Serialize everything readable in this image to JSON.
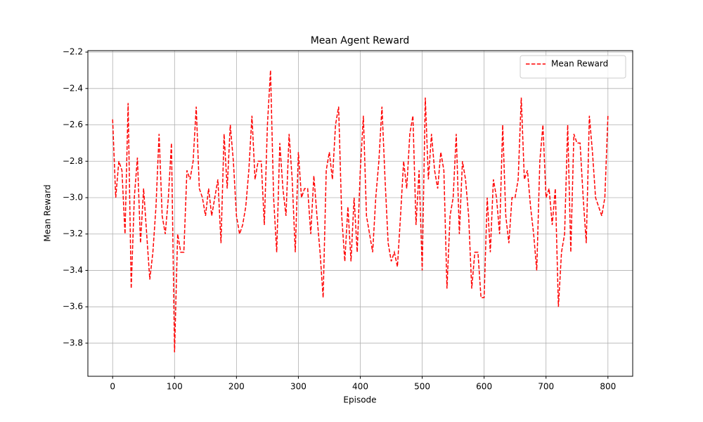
{
  "chart_data": {
    "type": "line",
    "title": "Mean Agent Reward",
    "xlabel": "Episode",
    "ylabel": "Mean Reward",
    "xlim": [
      -40,
      840
    ],
    "ylim": [
      -3.982,
      -2.192
    ],
    "xticks": [
      0,
      100,
      200,
      300,
      400,
      500,
      600,
      700,
      800
    ],
    "yticks": [
      {
        "value": -3.8,
        "label": "−3.8"
      },
      {
        "value": -3.6,
        "label": "−3.6"
      },
      {
        "value": -3.4,
        "label": "−3.4"
      },
      {
        "value": -3.2,
        "label": "−3.2"
      },
      {
        "value": -3.0,
        "label": "−3.0"
      },
      {
        "value": -2.8,
        "label": "−2.8"
      },
      {
        "value": -2.6,
        "label": "−2.6"
      },
      {
        "value": -2.4,
        "label": "−2.4"
      },
      {
        "value": -2.2,
        "label": "−2.2"
      }
    ],
    "grid": true,
    "legend": "upper-right",
    "x": [
      0,
      5,
      10,
      15,
      20,
      25,
      30,
      35,
      40,
      45,
      50,
      55,
      60,
      65,
      70,
      75,
      80,
      85,
      90,
      95,
      100,
      105,
      110,
      115,
      120,
      125,
      130,
      135,
      140,
      145,
      150,
      155,
      160,
      165,
      170,
      175,
      180,
      185,
      190,
      195,
      200,
      205,
      210,
      215,
      220,
      225,
      230,
      235,
      240,
      245,
      250,
      255,
      260,
      265,
      270,
      275,
      280,
      285,
      290,
      295,
      300,
      305,
      310,
      315,
      320,
      325,
      330,
      335,
      340,
      345,
      350,
      355,
      360,
      365,
      370,
      375,
      380,
      385,
      390,
      395,
      400,
      405,
      410,
      415,
      420,
      425,
      430,
      435,
      440,
      445,
      450,
      455,
      460,
      465,
      470,
      475,
      480,
      485,
      490,
      495,
      500,
      505,
      510,
      515,
      520,
      525,
      530,
      535,
      540,
      545,
      550,
      555,
      560,
      565,
      570,
      575,
      580,
      585,
      590,
      595,
      600,
      605,
      610,
      615,
      620,
      625,
      630,
      635,
      640,
      645,
      650,
      655,
      660,
      665,
      670,
      675,
      680,
      685,
      690,
      695,
      700,
      705,
      710,
      715,
      720,
      725,
      730,
      735,
      740,
      745,
      750,
      755,
      760,
      765,
      770,
      775,
      780,
      785,
      790,
      795,
      800
    ],
    "series": [
      {
        "name": "Mean Reward",
        "color": "#ff0000",
        "values": [
          -2.57,
          -3.0,
          -2.8,
          -2.85,
          -3.2,
          -2.48,
          -3.5,
          -3.0,
          -2.78,
          -3.25,
          -2.95,
          -3.2,
          -3.45,
          -3.3,
          -3.05,
          -2.65,
          -3.1,
          -3.2,
          -3.0,
          -2.7,
          -3.85,
          -3.2,
          -3.3,
          -3.3,
          -2.85,
          -2.9,
          -2.8,
          -2.5,
          -2.95,
          -3.0,
          -3.1,
          -2.95,
          -3.1,
          -3.0,
          -2.9,
          -3.25,
          -2.65,
          -2.95,
          -2.6,
          -2.8,
          -3.1,
          -3.2,
          -3.15,
          -3.05,
          -2.85,
          -2.55,
          -2.9,
          -2.8,
          -2.8,
          -3.15,
          -2.6,
          -2.3,
          -3.0,
          -3.3,
          -2.7,
          -2.95,
          -3.1,
          -2.65,
          -2.9,
          -3.3,
          -2.75,
          -3.0,
          -2.95,
          -2.95,
          -3.2,
          -2.88,
          -3.1,
          -3.3,
          -3.55,
          -2.85,
          -2.75,
          -2.9,
          -2.6,
          -2.5,
          -3.1,
          -3.35,
          -3.05,
          -3.35,
          -3.0,
          -3.3,
          -2.85,
          -2.55,
          -3.1,
          -3.2,
          -3.3,
          -3.0,
          -2.8,
          -2.5,
          -2.9,
          -3.25,
          -3.35,
          -3.3,
          -3.38,
          -3.1,
          -2.8,
          -2.95,
          -2.65,
          -2.55,
          -3.15,
          -2.85,
          -3.4,
          -2.45,
          -2.9,
          -2.65,
          -2.85,
          -2.95,
          -2.75,
          -2.85,
          -3.5,
          -3.1,
          -3.0,
          -2.65,
          -3.2,
          -2.8,
          -2.9,
          -3.1,
          -3.5,
          -3.3,
          -3.3,
          -3.55,
          -3.55,
          -3.0,
          -3.3,
          -2.9,
          -3.0,
          -3.2,
          -2.6,
          -3.1,
          -3.25,
          -3.0,
          -3.0,
          -2.9,
          -2.45,
          -2.9,
          -2.85,
          -3.05,
          -3.2,
          -3.4,
          -2.8,
          -2.6,
          -3.0,
          -2.95,
          -3.15,
          -2.95,
          -3.6,
          -3.3,
          -3.2,
          -2.6,
          -3.3,
          -2.65,
          -2.7,
          -2.7,
          -3.0,
          -3.25,
          -2.55,
          -2.75,
          -3.0,
          -3.05,
          -3.1,
          -3.0,
          -2.55
        ]
      }
    ]
  }
}
